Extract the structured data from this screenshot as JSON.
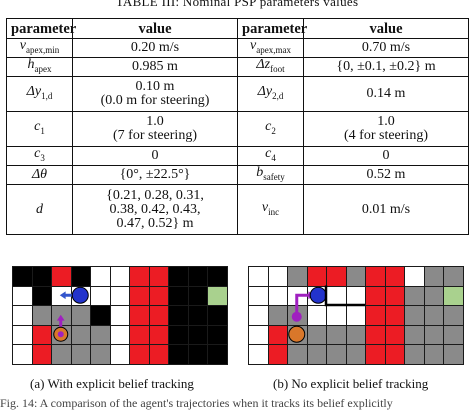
{
  "table_caption": "TABLE III: Nominal PSP parameters values",
  "table": {
    "headers": [
      "parameter",
      "value",
      "parameter",
      "value"
    ],
    "rows": [
      {
        "p1": "v",
        "p1_sub": "apex,min",
        "v1": [
          "0.20 m/s"
        ],
        "p2": "v",
        "p2_sub": "apex,max",
        "v2": [
          "0.70 m/s"
        ]
      },
      {
        "p1": "h",
        "p1_sub": "apex",
        "v1": [
          "0.985 m"
        ],
        "p2": "Δz",
        "p2_sub": "foot",
        "v2": [
          "{0, ±0.1, ±0.2} m"
        ]
      },
      {
        "p1": "Δy",
        "p1_sub": "1,d",
        "v1": [
          "0.10 m",
          "(0.0 m for steering)"
        ],
        "p2": "Δy",
        "p2_sub": "2,d",
        "v2": [
          "0.14 m"
        ]
      },
      {
        "p1": "c",
        "p1_sub": "1",
        "v1": [
          "1.0",
          "(7 for steering)"
        ],
        "p2": "c",
        "p2_sub": "2",
        "v2": [
          "1.0",
          "(4 for steering)"
        ]
      },
      {
        "p1": "c",
        "p1_sub": "3",
        "v1": [
          "0"
        ],
        "p2": "c",
        "p2_sub": "4",
        "v2": [
          "0"
        ]
      },
      {
        "p1": "Δθ",
        "p1_sub": "",
        "v1": [
          "{0°, ±22.5°}"
        ],
        "p2": "b",
        "p2_sub": "safety",
        "v2": [
          "0.52 m"
        ]
      },
      {
        "p1": "d",
        "p1_sub": "",
        "v1": [
          "{0.21, 0.28, 0.31,",
          "0.38, 0.42, 0.43,",
          "0.47, 0.52} m"
        ],
        "p2": "v",
        "p2_sub": "inc",
        "v2": [
          "0.01 m/s"
        ]
      }
    ]
  },
  "figures": [
    {
      "caption": "(a) With explicit belief tracking",
      "rows": [
        "kkrkwwrrkkk",
        "wkwbwwrrkkw",
        "wgggkwrrkkk",
        "wrgggwrrkkk",
        "wrgggwrrkkk"
      ]
    },
    {
      "caption": "(b) No explicit belief tracking",
      "rows": [
        "wwgrrgrrwgg",
        "wbwwwwrrgga",
        "wggwwwrrggg",
        "wrggggrrggg",
        "wrggggrrggg"
      ]
    }
  ],
  "footer_text": "Fig. 14: A comparison of the agent's trajectories when it tracks its belief explicitly",
  "colors": {
    "red": "#ec1c24",
    "gray": "#8a8a8a",
    "black": "#000000",
    "green": "#a9d18e",
    "robot": "#2233cc",
    "arrow_a": "#3355cc",
    "arrow_b": "#a020c0",
    "goal_fill": "#d9772a"
  }
}
